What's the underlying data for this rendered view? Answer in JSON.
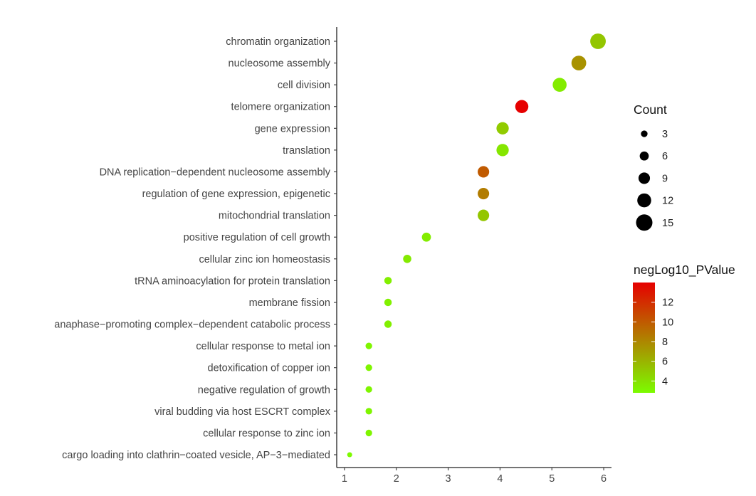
{
  "chart_data": {
    "type": "scatter",
    "x_ticks": [
      1,
      2,
      3,
      4,
      5,
      6
    ],
    "xlim": [
      0.85,
      6.15
    ],
    "terms": [
      {
        "label": "chromatin organization",
        "x": 5.89,
        "count": 14,
        "neglog10p": 5.2
      },
      {
        "label": "nucleosome assembly",
        "x": 5.52,
        "count": 13,
        "neglog10p": 7.5
      },
      {
        "label": "cell division",
        "x": 5.15,
        "count": 12,
        "neglog10p": 3.5
      },
      {
        "label": "telomere organization",
        "x": 4.42,
        "count": 11,
        "neglog10p": 14.0
      },
      {
        "label": "gene expression",
        "x": 4.05,
        "count": 10,
        "neglog10p": 5.0
      },
      {
        "label": "translation",
        "x": 4.05,
        "count": 10,
        "neglog10p": 3.8
      },
      {
        "label": "DNA replication−dependent nucleosome assembly",
        "x": 3.68,
        "count": 9,
        "neglog10p": 10.0
      },
      {
        "label": "regulation of gene expression, epigenetic",
        "x": 3.68,
        "count": 9,
        "neglog10p": 8.5
      },
      {
        "label": "mitochondrial translation",
        "x": 3.68,
        "count": 9,
        "neglog10p": 5.2
      },
      {
        "label": "positive regulation of cell growth",
        "x": 2.58,
        "count": 6,
        "neglog10p": 3.5
      },
      {
        "label": "cellular zinc ion homeostasis",
        "x": 2.21,
        "count": 5,
        "neglog10p": 3.6
      },
      {
        "label": "tRNA aminoacylation for protein translation",
        "x": 1.84,
        "count": 4,
        "neglog10p": 3.4
      },
      {
        "label": "membrane fission",
        "x": 1.84,
        "count": 4,
        "neglog10p": 3.3
      },
      {
        "label": "anaphase−promoting complex−dependent catabolic process",
        "x": 1.84,
        "count": 4,
        "neglog10p": 3.4
      },
      {
        "label": "cellular response to metal ion",
        "x": 1.47,
        "count": 3,
        "neglog10p": 3.1
      },
      {
        "label": "detoxification of copper ion",
        "x": 1.47,
        "count": 3,
        "neglog10p": 3.1
      },
      {
        "label": "negative regulation of growth",
        "x": 1.47,
        "count": 3,
        "neglog10p": 3.1
      },
      {
        "label": "viral budding via host ESCRT complex",
        "x": 1.47,
        "count": 3,
        "neglog10p": 3.1
      },
      {
        "label": "cellular response to zinc ion",
        "x": 1.47,
        "count": 3,
        "neglog10p": 3.1
      },
      {
        "label": "cargo loading into clathrin−coated vesicle, AP−3−mediated",
        "x": 1.1,
        "count": 1,
        "neglog10p": 2.9
      }
    ],
    "size_legend": {
      "title": "Count",
      "breaks": [
        3,
        6,
        9,
        12,
        15
      ],
      "range": [
        1,
        15
      ]
    },
    "color_legend": {
      "title": "negLog10_PValue",
      "breaks": [
        4,
        6,
        8,
        10,
        12
      ],
      "range": [
        2.8,
        14.0
      ],
      "low_color": "#7CFC00",
      "high_color": "#E60000"
    },
    "grid": false,
    "legend_position": "right"
  }
}
